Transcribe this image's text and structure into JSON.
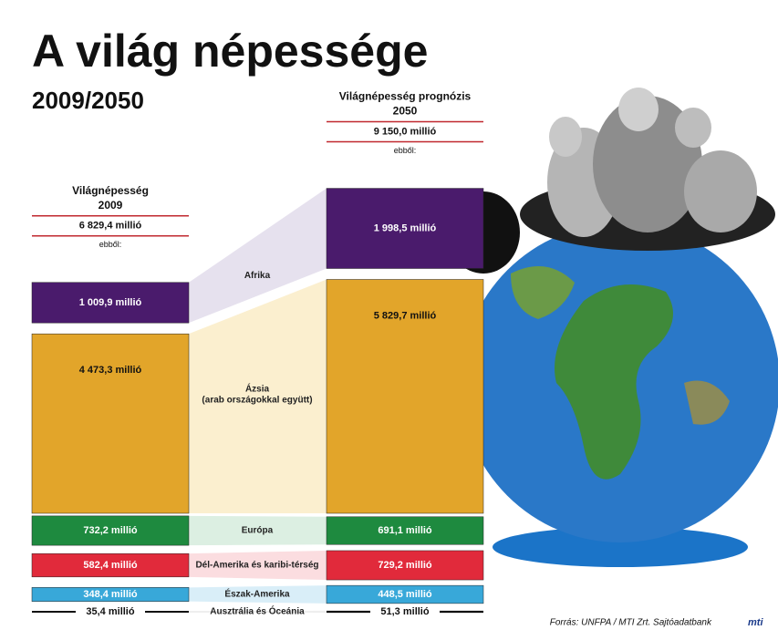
{
  "chart_data": {
    "type": "bar",
    "title": "A világ népessége",
    "subtitle": "2009/2050",
    "categories": [
      "Afrika",
      "Ázsia",
      "Európa",
      "Dél-Amerika és karibi-térség",
      "Észak-Amerika",
      "Ausztrália és Óceánia"
    ],
    "asia_note": "(arab országokkal együtt)",
    "colors": [
      "#4a1b6c",
      "#e2a52a",
      "#1e8a3f",
      "#e12a3b",
      "#38a8d9",
      "#111111"
    ],
    "link_colors": [
      "#e6e1ee",
      "#fbefcf",
      "#dcefe2",
      "#fbdde0",
      "#d9eef8",
      "#eeeeee"
    ],
    "series": [
      {
        "name": "Világnépesség",
        "year": "2009",
        "total": 6829.4,
        "total_label": "6 829,4 millió",
        "of_which": "ebből:",
        "values": [
          1009.9,
          4473.3,
          732.2,
          582.4,
          348.4,
          35.4
        ],
        "value_labels": [
          "1 009,9 millió",
          "4 473,3 millió",
          "732,2 millió",
          "582,4 millió",
          "348,4 millió",
          "35,4 millió"
        ]
      },
      {
        "name": "Világnépesség prognózis",
        "year": "2050",
        "total": 9150.0,
        "total_label": "9 150,0 millió",
        "of_which": "ebből:",
        "values": [
          1998.5,
          5829.7,
          691.1,
          729.2,
          448.5,
          51.3
        ],
        "value_labels": [
          "1 998,5 millió",
          "5 829,7 millió",
          "691,1 millió",
          "729,2 millió",
          "448,5 millió",
          "51,3 millió"
        ]
      }
    ],
    "source": "Forrás: UNFPA / MTI Zrt. Sajtóadatbank",
    "logo": "mti"
  }
}
